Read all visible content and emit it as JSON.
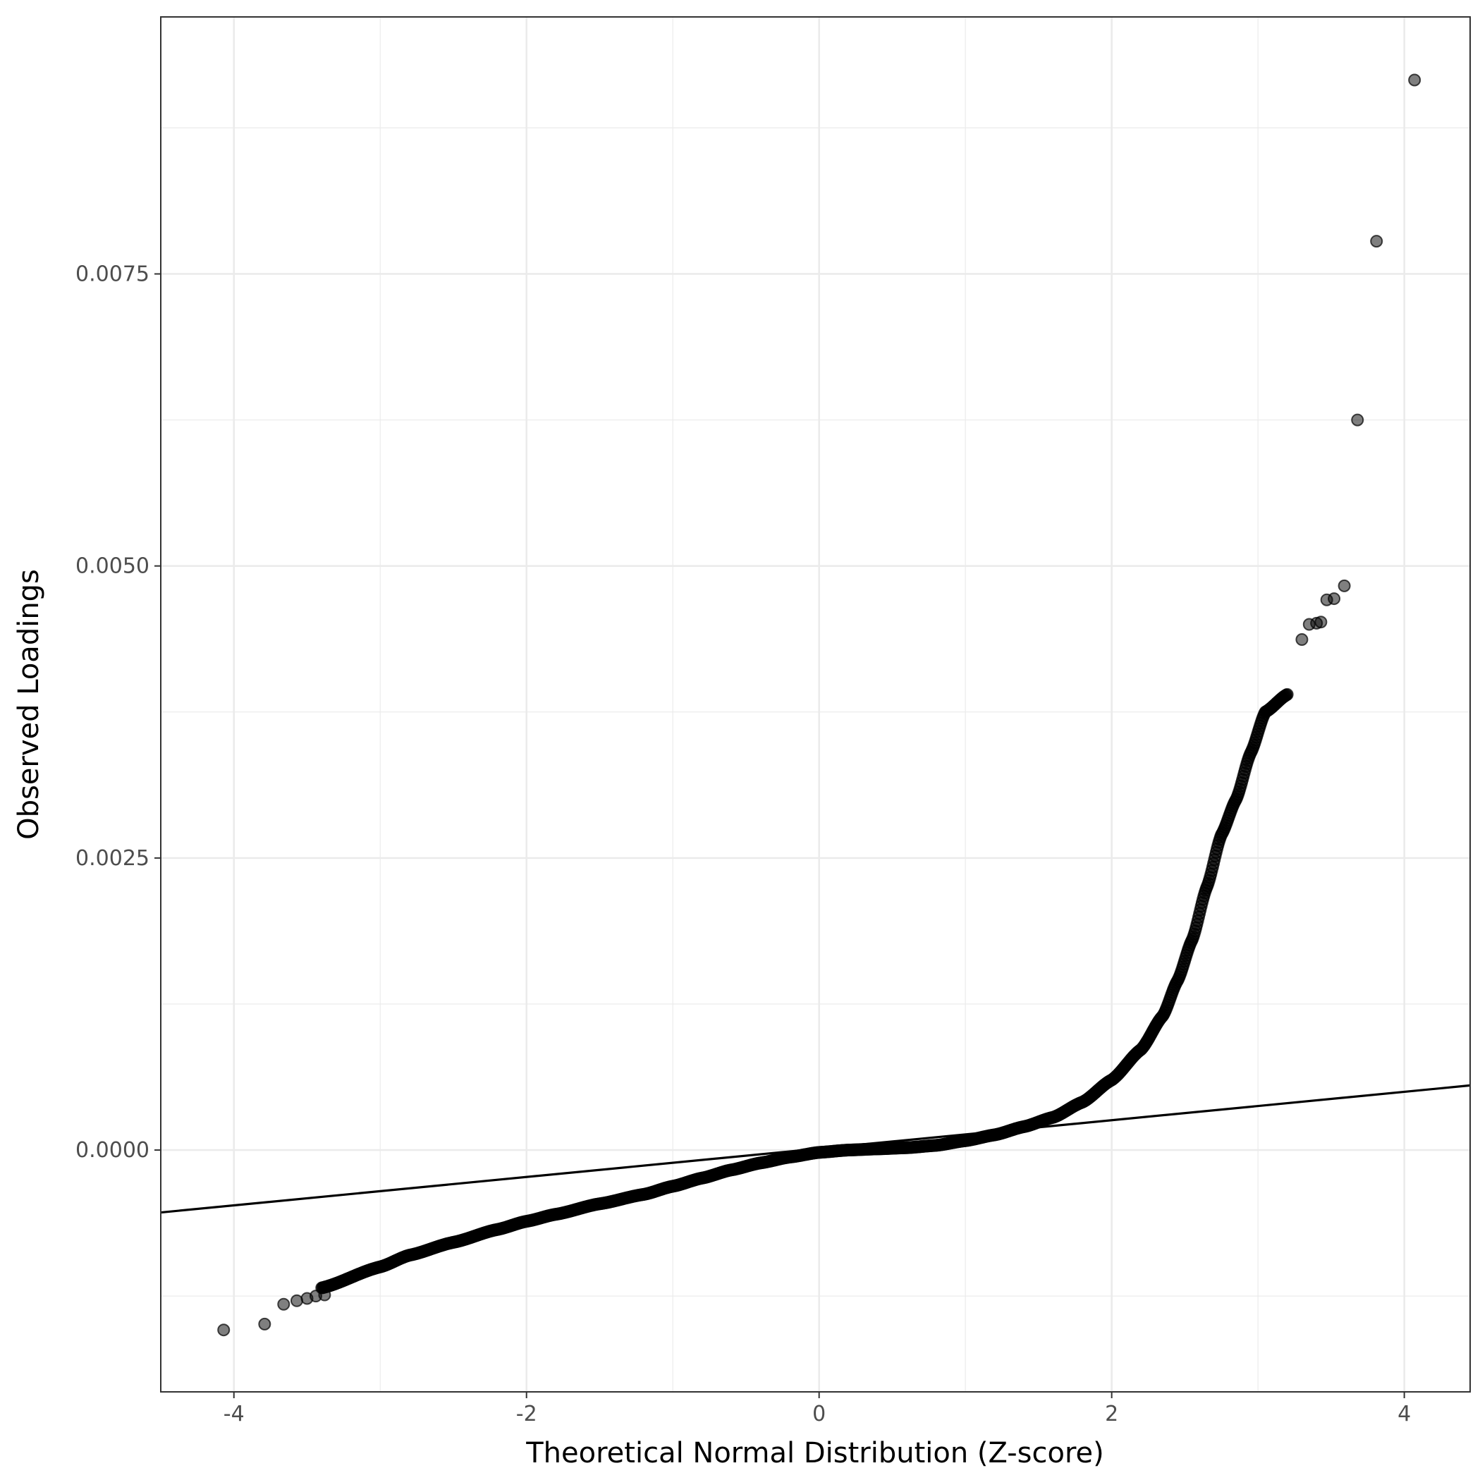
{
  "chart_data": {
    "type": "scatter",
    "title": "",
    "xlabel": "Theoretical Normal Distribution (Z-score)",
    "ylabel": "Observed Loadings",
    "xlim": [
      -4.5,
      4.45
    ],
    "ylim": [
      -0.00207,
      0.0097
    ],
    "x_ticks": [
      -4,
      -2,
      0,
      2,
      4
    ],
    "x_tick_labels": [
      "-4",
      "-2",
      "0",
      "2",
      "4"
    ],
    "y_ticks": [
      0.0,
      0.0025,
      0.005,
      0.0075
    ],
    "y_tick_labels": [
      "0.0000",
      "0.0025",
      "0.0050",
      "0.0075"
    ],
    "grid": true,
    "reference_line": {
      "intercept": 1.25e-05,
      "slope": 0.0001215
    },
    "curve_knots": [
      [
        -3.4,
        -0.00118
      ],
      [
        -3.0,
        -0.001
      ],
      [
        -2.8,
        -0.0009
      ],
      [
        -2.5,
        -0.00079
      ],
      [
        -2.2,
        -0.00068
      ],
      [
        -2.0,
        -0.00061
      ],
      [
        -1.8,
        -0.00055
      ],
      [
        -1.5,
        -0.00046
      ],
      [
        -1.2,
        -0.00038
      ],
      [
        -1.0,
        -0.00031
      ],
      [
        -0.8,
        -0.00024
      ],
      [
        -0.6,
        -0.00017
      ],
      [
        -0.4,
        -0.00011
      ],
      [
        -0.2,
        -6e-05
      ],
      [
        0.0,
        -2e-05
      ],
      [
        0.2,
        0.0
      ],
      [
        0.4,
        1e-05
      ],
      [
        0.6,
        2e-05
      ],
      [
        0.8,
        4e-05
      ],
      [
        1.0,
        8e-05
      ],
      [
        1.2,
        0.00013
      ],
      [
        1.4,
        0.0002
      ],
      [
        1.6,
        0.00028
      ],
      [
        1.8,
        0.00041
      ],
      [
        2.0,
        0.0006
      ],
      [
        2.2,
        0.00086
      ],
      [
        2.35,
        0.00115
      ],
      [
        2.45,
        0.00145
      ],
      [
        2.55,
        0.0018
      ],
      [
        2.65,
        0.00225
      ],
      [
        2.75,
        0.0027
      ],
      [
        2.85,
        0.003
      ],
      [
        2.95,
        0.0034
      ],
      [
        3.05,
        0.00375
      ],
      [
        3.2,
        0.0039
      ]
    ],
    "series": [
      {
        "points": [
          [
            -4.07,
            -0.00154
          ],
          [
            -3.79,
            -0.00149
          ],
          [
            -3.66,
            -0.00132
          ],
          [
            -3.57,
            -0.00129
          ],
          [
            -3.5,
            -0.00127
          ],
          [
            -3.44,
            -0.00125
          ],
          [
            -3.38,
            -0.00124
          ],
          [
            3.3,
            0.00437
          ],
          [
            3.35,
            0.0045
          ],
          [
            3.4,
            0.00451
          ],
          [
            3.43,
            0.00452
          ],
          [
            3.47,
            0.00471
          ],
          [
            3.52,
            0.00472
          ],
          [
            3.59,
            0.00483
          ],
          [
            3.68,
            0.00625
          ],
          [
            3.81,
            0.00778
          ],
          [
            4.07,
            0.00916
          ]
        ]
      }
    ]
  }
}
